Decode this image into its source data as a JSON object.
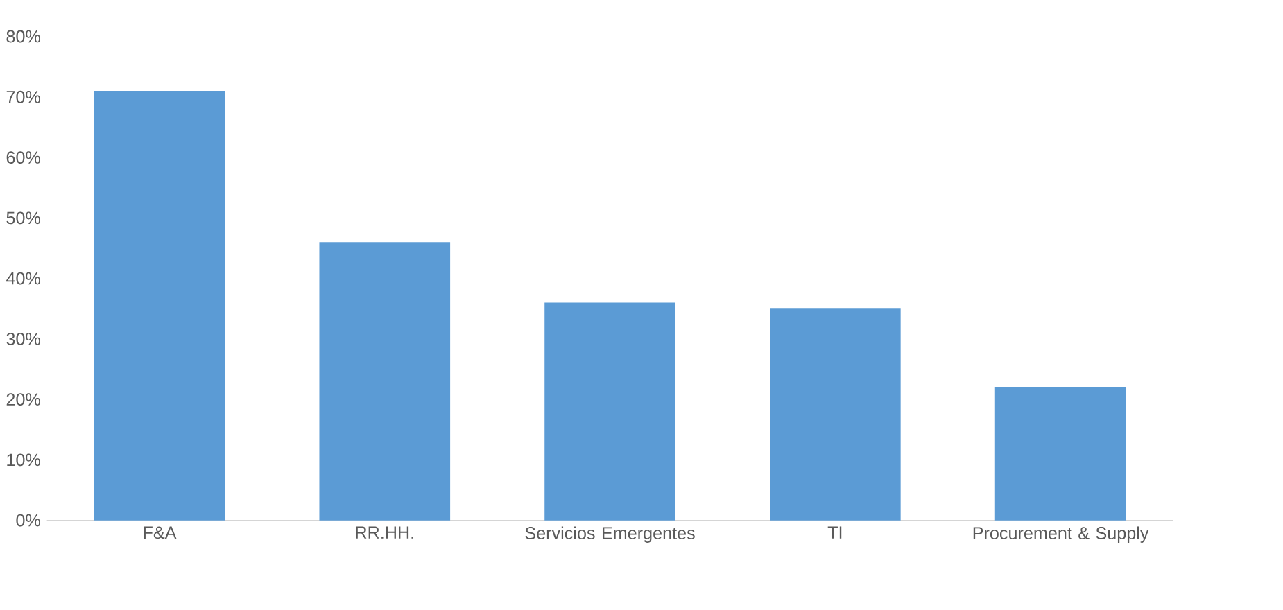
{
  "chart_data": {
    "type": "bar",
    "categories": [
      "F&A",
      "RR.HH.",
      "Servicios Emergentes",
      "TI",
      "Procurement & Supply"
    ],
    "values": [
      71,
      46,
      36,
      35,
      22
    ],
    "color": "#5b9bd5",
    "ylim": [
      0,
      80
    ],
    "yticks": [
      {
        "value": 0,
        "label": "0%"
      },
      {
        "value": 10,
        "label": "10%"
      },
      {
        "value": 20,
        "label": "20%"
      },
      {
        "value": 30,
        "label": "30%"
      },
      {
        "value": 40,
        "label": "40%"
      },
      {
        "value": 50,
        "label": "50%"
      },
      {
        "value": 60,
        "label": "60%"
      },
      {
        "value": 70,
        "label": "70%"
      },
      {
        "value": 80,
        "label": "80%"
      }
    ]
  }
}
